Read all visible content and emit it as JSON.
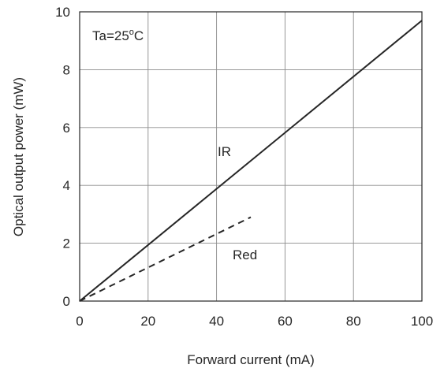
{
  "chart_data": {
    "type": "line",
    "xlabel": "Forward current  (mA)",
    "ylabel": "Optical output power  (mW)",
    "xlim": [
      0,
      100
    ],
    "ylim": [
      0,
      10
    ],
    "x_ticks": [
      "0",
      "20",
      "40",
      "60",
      "80",
      "100"
    ],
    "y_ticks": [
      "0",
      "2",
      "4",
      "6",
      "8",
      "10"
    ],
    "grid": true,
    "condition": "Ta=25",
    "condition_unit": "o",
    "condition_suffix": "C",
    "series": [
      {
        "name": "IR",
        "style": "solid",
        "x": [
          0,
          100
        ],
        "y": [
          0,
          9.7
        ]
      },
      {
        "name": "Red",
        "style": "dashed",
        "x": [
          0,
          50
        ],
        "y": [
          0,
          2.9
        ]
      }
    ]
  }
}
